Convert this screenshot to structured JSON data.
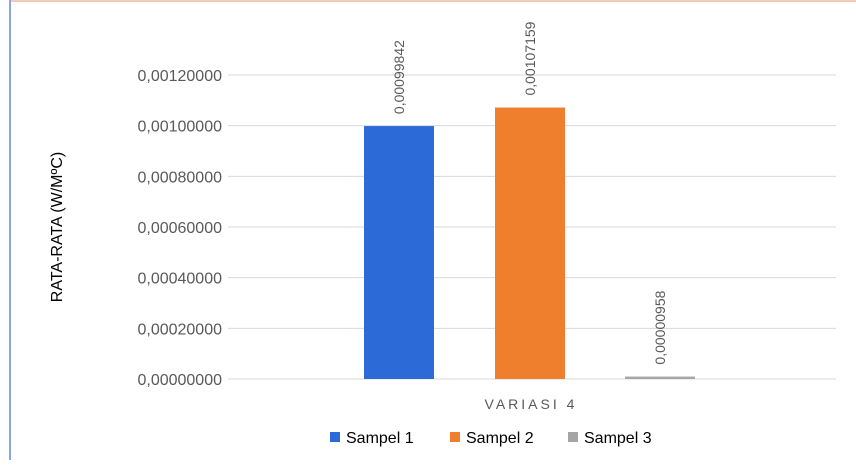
{
  "chart_data": {
    "type": "bar",
    "categories": [
      "VARIASI 4"
    ],
    "series": [
      {
        "name": "Sampel 1",
        "values": [
          0.00099842
        ],
        "label": "0,00099842",
        "color": "#2c6ad8"
      },
      {
        "name": "Sampel 2",
        "values": [
          0.00107159
        ],
        "label": "0,00107159",
        "color": "#f07f2d"
      },
      {
        "name": "Sampel 3",
        "values": [
          9.58e-06
        ],
        "label": "0,00000958",
        "color": "#a5a5a5"
      }
    ],
    "ylabel": "RATA-RATA (W/MºC)",
    "xlabel": "",
    "ylim": [
      0,
      0.0012
    ],
    "yticks": [
      0,
      0.0002,
      0.0004,
      0.0006,
      0.0008,
      0.001,
      0.0012
    ],
    "ytick_labels": [
      "0,00000000",
      "0,00020000",
      "0,00040000",
      "0,00060000",
      "0,00080000",
      "0,00100000",
      "0,00120000"
    ],
    "grid": true,
    "legend_position": "bottom"
  },
  "colors": {
    "frame_border": "#f3b9a0",
    "left_edge": "#8aa6e0",
    "grid": "#d9d9d9",
    "axis_text": "#595959"
  }
}
